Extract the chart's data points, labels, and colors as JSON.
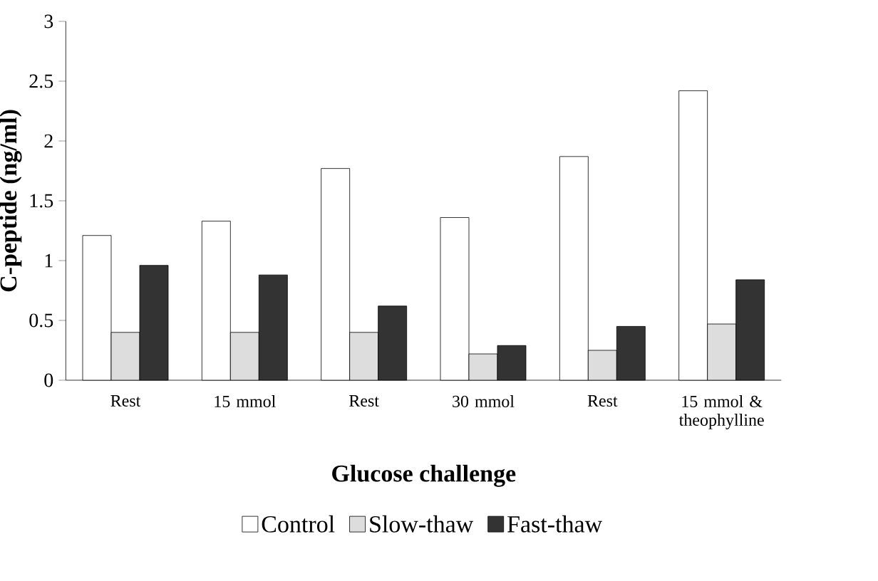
{
  "chart_data": {
    "type": "bar",
    "xlabel": "Glucose challenge",
    "ylabel": "C-peptide (ng/ml)",
    "categories": [
      "Rest",
      "15 mmol",
      "Rest",
      "30 mmol",
      "Rest",
      "15 mmol & theophylline"
    ],
    "series": [
      {
        "name": "Control",
        "color": "#ffffff",
        "values": [
          1.21,
          1.33,
          1.77,
          1.36,
          1.87,
          2.42
        ]
      },
      {
        "name": "Slow-thaw",
        "color": "#dddddd",
        "values": [
          0.4,
          0.4,
          0.4,
          0.22,
          0.25,
          0.47
        ]
      },
      {
        "name": "Fast-thaw",
        "color": "#333333",
        "values": [
          0.96,
          0.88,
          0.62,
          0.29,
          0.45,
          0.84
        ]
      }
    ],
    "ylim": [
      0,
      3
    ],
    "yticks": [
      0,
      0.5,
      1,
      1.5,
      2,
      2.5,
      3
    ],
    "legend": "bottom",
    "grid": false
  }
}
